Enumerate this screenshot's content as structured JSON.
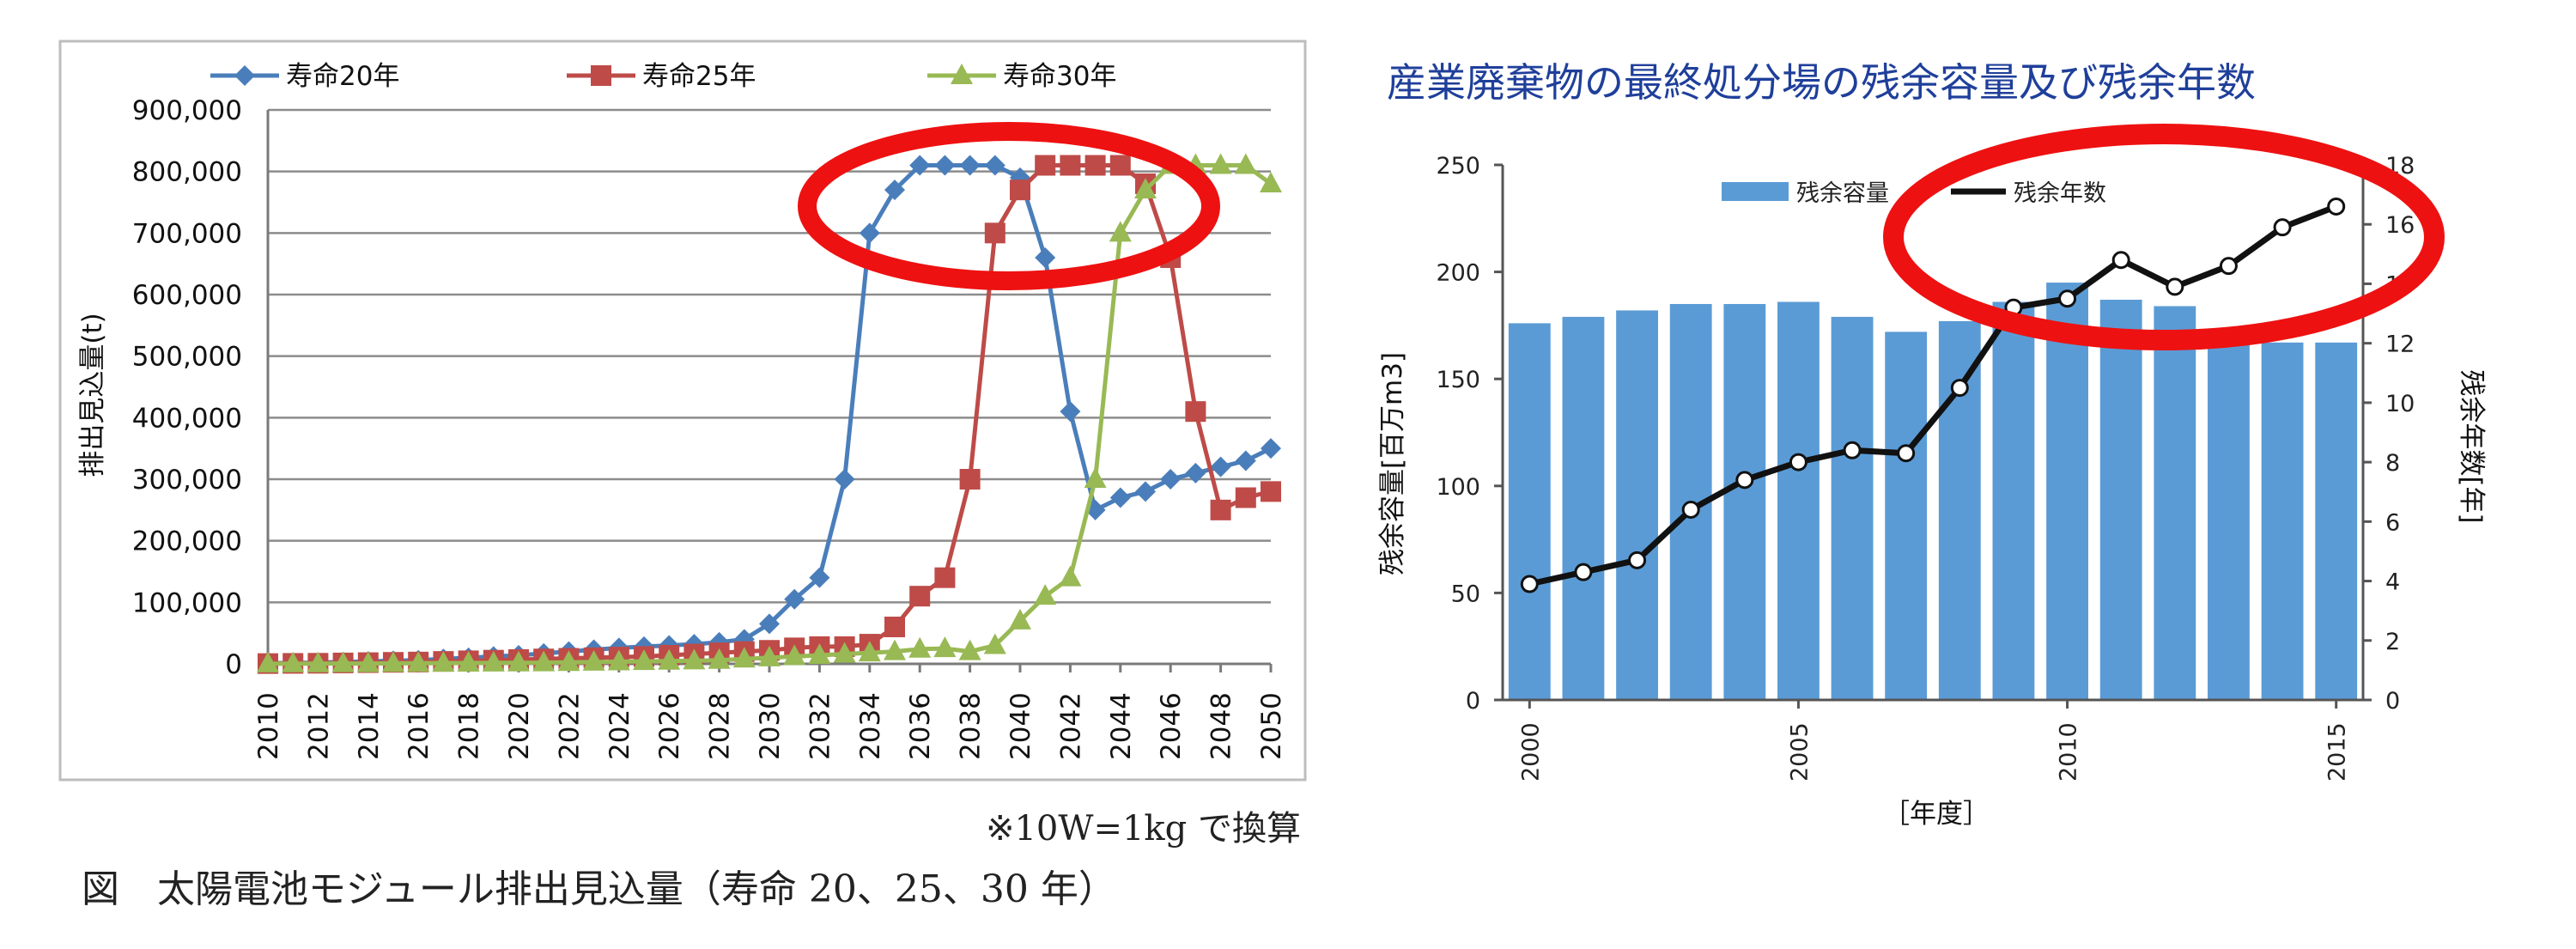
{
  "left_chart": {
    "legend": [
      "寿命20年",
      "寿命25年",
      "寿命30年"
    ],
    "ylabel": "排出見込量(t)",
    "note": "※10W=1kg で換算",
    "caption": "図　太陽電池モジュール排出見込量（寿命 20、25、30 年）",
    "x_ticks": [
      "2010",
      "2012",
      "2014",
      "2016",
      "2018",
      "2020",
      "2022",
      "2024",
      "2026",
      "2028",
      "2030",
      "2032",
      "2034",
      "2036",
      "2038",
      "2040",
      "2042",
      "2044",
      "2046",
      "2048",
      "2050"
    ],
    "y_ticks": [
      "0",
      "100,000",
      "200,000",
      "300,000",
      "400,000",
      "500,000",
      "600,000",
      "700,000",
      "800,000",
      "900,000"
    ]
  },
  "right_chart": {
    "title": "産業廃棄物の最終処分場の残余容量及び残余年数",
    "legend": [
      "残余容量",
      "残余年数"
    ],
    "ylabel_left": "残余容量[百万m3]",
    "ylabel_right": "残余年数[年]",
    "xlabel": "［年度］",
    "x_ticks": [
      "2000",
      "2005",
      "2010",
      "2015"
    ],
    "y_left_ticks": [
      "0",
      "50",
      "100",
      "150",
      "200",
      "250"
    ],
    "y_right_ticks": [
      "0",
      "2",
      "4",
      "6",
      "8",
      "10",
      "12",
      "14",
      "16",
      "18"
    ]
  },
  "colors": {
    "series20": "#4a7ebb",
    "series25": "#be4b48",
    "series30": "#98b954",
    "bar": "#5b9bd5",
    "line": "#111111",
    "highlight": "#ee1111",
    "title": "#1f3f9a"
  },
  "chart_data": [
    {
      "type": "line",
      "title": "",
      "xlabel": "",
      "ylabel": "排出見込量(t)",
      "ylim": [
        0,
        900000
      ],
      "x": [
        2010,
        2011,
        2012,
        2013,
        2014,
        2015,
        2016,
        2017,
        2018,
        2019,
        2020,
        2021,
        2022,
        2023,
        2024,
        2025,
        2026,
        2027,
        2028,
        2029,
        2030,
        2031,
        2032,
        2033,
        2034,
        2035,
        2036,
        2037,
        2038,
        2039,
        2040,
        2041,
        2042,
        2043,
        2044,
        2045,
        2046,
        2047,
        2048,
        2049,
        2050
      ],
      "series": [
        {
          "name": "寿命20年",
          "values": [
            1000,
            1500,
            2000,
            3000,
            4000,
            5000,
            6000,
            8000,
            10000,
            12000,
            14000,
            17000,
            20000,
            23000,
            26000,
            28000,
            30000,
            32000,
            35000,
            40000,
            65000,
            105000,
            140000,
            300000,
            700000,
            770000,
            810000,
            810000,
            810000,
            810000,
            790000,
            660000,
            410000,
            250000,
            270000,
            280000,
            300000,
            310000,
            320000,
            330000,
            350000
          ]
        },
        {
          "name": "寿命25年",
          "values": [
            500,
            800,
            1000,
            1500,
            2000,
            2500,
            3000,
            4000,
            5000,
            6000,
            7000,
            8000,
            9000,
            10000,
            11000,
            12000,
            14000,
            16000,
            18000,
            20000,
            22000,
            26000,
            28000,
            28000,
            32000,
            60000,
            110000,
            140000,
            300000,
            700000,
            770000,
            810000,
            810000,
            810000,
            810000,
            780000,
            660000,
            410000,
            250000,
            270000,
            280000
          ]
        },
        {
          "name": "寿命30年",
          "values": [
            200,
            300,
            400,
            500,
            600,
            800,
            1000,
            1200,
            1400,
            1600,
            1800,
            2000,
            2500,
            3000,
            3500,
            4000,
            4500,
            5000,
            6000,
            8000,
            10000,
            12000,
            14000,
            16000,
            18000,
            20000,
            24000,
            25000,
            20000,
            30000,
            70000,
            110000,
            140000,
            300000,
            700000,
            770000,
            810000,
            810000,
            810000,
            810000,
            780000
          ]
        }
      ]
    },
    {
      "type": "bar",
      "title": "産業廃棄物の最終処分場の残余容量及び残余年数",
      "xlabel": "［年度］",
      "ylabel": "残余容量[百万m3]",
      "ylim": [
        0,
        250
      ],
      "y2label": "残余年数[年]",
      "y2lim": [
        0,
        18
      ],
      "categories": [
        2000,
        2001,
        2002,
        2003,
        2004,
        2005,
        2006,
        2007,
        2008,
        2009,
        2010,
        2011,
        2012,
        2013,
        2014,
        2015
      ],
      "series": [
        {
          "name": "残余容量",
          "type": "bar",
          "axis": "left",
          "values": [
            176,
            179,
            182,
            185,
            185,
            186,
            179,
            172,
            177,
            186,
            195,
            187,
            184,
            172,
            167,
            167
          ]
        },
        {
          "name": "残余年数",
          "type": "line",
          "axis": "right",
          "values": [
            3.9,
            4.3,
            4.7,
            6.4,
            7.4,
            8.0,
            8.4,
            8.3,
            10.5,
            13.2,
            13.5,
            14.8,
            13.9,
            14.6,
            15.9,
            16.6
          ]
        }
      ]
    }
  ]
}
